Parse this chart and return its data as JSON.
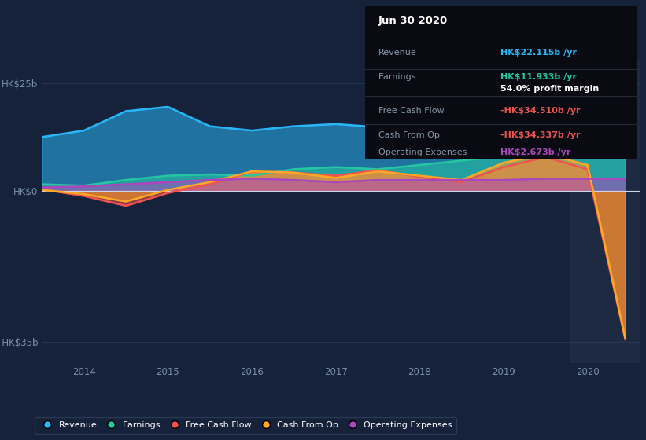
{
  "background_color": "#16213a",
  "plot_bg_color": "#16213a",
  "grid_color": "#2a3a55",
  "text_color": "#7a8fa8",
  "years": [
    2013.5,
    2014.0,
    2014.5,
    2015.0,
    2015.5,
    2016.0,
    2016.5,
    2017.0,
    2017.5,
    2018.0,
    2018.5,
    2019.0,
    2019.5,
    2020.0,
    2020.45
  ],
  "revenue": [
    12.5,
    14.0,
    18.5,
    19.5,
    15.0,
    14.0,
    15.0,
    15.5,
    14.8,
    15.5,
    15.8,
    16.5,
    17.2,
    19.0,
    22.1
  ],
  "earnings": [
    1.5,
    1.2,
    2.5,
    3.5,
    3.8,
    3.5,
    5.0,
    5.5,
    5.0,
    6.0,
    7.0,
    8.0,
    8.5,
    9.8,
    11.9
  ],
  "free_cash_flow": [
    0.3,
    -1.2,
    -3.5,
    -0.5,
    1.5,
    4.5,
    4.2,
    3.5,
    4.8,
    3.2,
    2.0,
    5.5,
    7.8,
    5.0,
    -34.5
  ],
  "cash_from_op": [
    0.2,
    -0.8,
    -2.5,
    0.2,
    2.0,
    4.5,
    4.2,
    3.0,
    4.5,
    3.5,
    2.5,
    6.5,
    8.5,
    6.0,
    -34.3
  ],
  "operating_exp": [
    0.8,
    1.0,
    1.5,
    2.0,
    2.5,
    2.8,
    2.5,
    2.0,
    2.5,
    2.5,
    2.5,
    2.5,
    2.8,
    2.8,
    2.7
  ],
  "revenue_color": "#29b6f6",
  "earnings_color": "#26c6a0",
  "free_cash_flow_color": "#ef5350",
  "cash_from_op_color": "#ffa726",
  "operating_exp_color": "#ab47bc",
  "ylim_top": 30,
  "ylim_bottom": -40,
  "yticks": [
    25,
    0,
    -35
  ],
  "ytick_labels": [
    "HK$25b",
    "HK$0",
    "-HK$35b"
  ],
  "xtick_years": [
    2014,
    2015,
    2016,
    2017,
    2018,
    2019,
    2020
  ],
  "annotation_date": "Jun 30 2020",
  "ann_revenue_label": "Revenue",
  "ann_revenue": "HK$22.115b",
  "ann_earnings_label": "Earnings",
  "ann_earnings": "HK$11.933b",
  "ann_profit_margin": "54.0%",
  "ann_fcf_label": "Free Cash Flow",
  "ann_fcf": "-HK$34.510b",
  "ann_cfop_label": "Cash From Op",
  "ann_cfop": "-HK$34.337b",
  "ann_opex_label": "Operating Expenses",
  "ann_opex": "HK$2.673b",
  "legend_items": [
    "Revenue",
    "Earnings",
    "Free Cash Flow",
    "Cash From Op",
    "Operating Expenses"
  ],
  "legend_colors": [
    "#29b6f6",
    "#26c6a0",
    "#ef5350",
    "#ffa726",
    "#ab47bc"
  ]
}
